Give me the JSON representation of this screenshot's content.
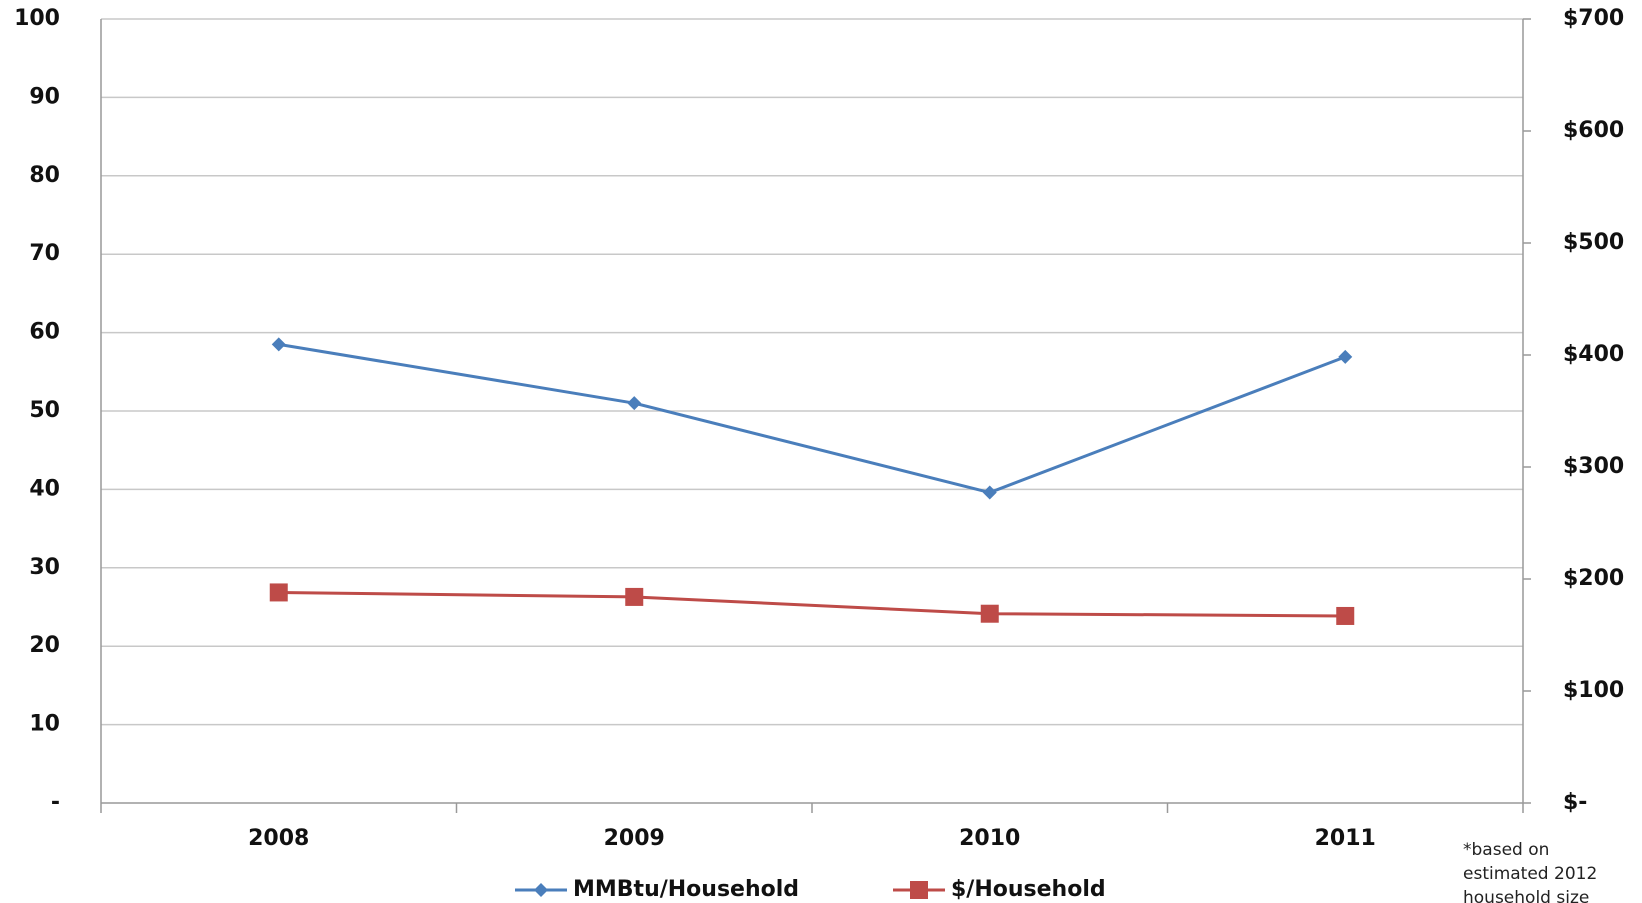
{
  "chart_data": {
    "type": "line",
    "categories": [
      "2008",
      "2009",
      "2010",
      "2011"
    ],
    "series": [
      {
        "name": "MMBtu/Household",
        "color": "#4a7ebb",
        "marker": "diamond",
        "values": [
          58.5,
          51.0,
          39.6,
          56.9
        ]
      },
      {
        "name": "$/Household",
        "color": "#be4b48",
        "marker": "square",
        "axis": "y2",
        "values": [
          188,
          184,
          169,
          167
        ]
      }
    ],
    "ylim": [
      0,
      100
    ],
    "yticks": [
      {
        "value": 0,
        "label": "-"
      },
      10,
      20,
      30,
      40,
      50,
      60,
      70,
      80,
      90,
      100
    ],
    "y2lim": [
      0,
      700
    ],
    "y2ticks": [
      {
        "value": 0,
        "label": "$-"
      },
      {
        "value": 100,
        "label": "$100"
      },
      {
        "value": 200,
        "label": "$200"
      },
      {
        "value": 300,
        "label": "$300"
      },
      {
        "value": 400,
        "label": "$400"
      },
      {
        "value": 500,
        "label": "$500"
      },
      {
        "value": 600,
        "label": "$600"
      },
      {
        "value": 700,
        "label": "$700"
      }
    ],
    "grid": true,
    "legend": "bottom",
    "note": "*based on estimated 2012 household size"
  }
}
